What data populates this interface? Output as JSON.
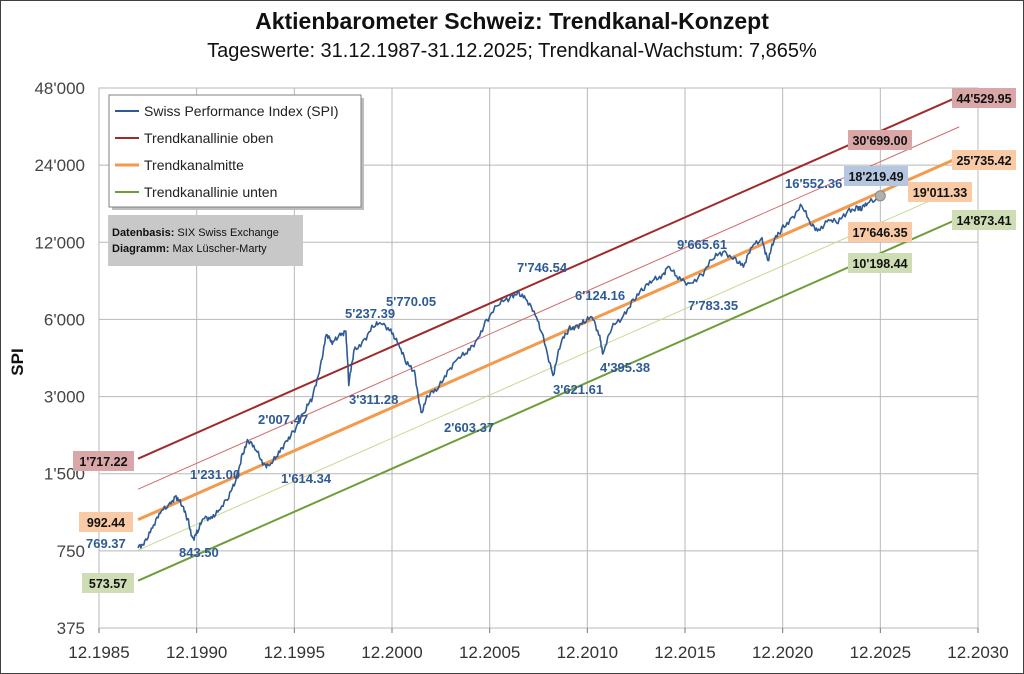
{
  "chart_data": {
    "type": "line",
    "title": "Aktienbarometer Schweiz: Trendkanal-Konzept",
    "subtitle": "Tageswerte: 31.12.1987-31.12.2025; Trendkanal-Wachstum: 7,865%",
    "ylabel": "SPI",
    "yscale": "log2",
    "ylim": [
      375,
      48000
    ],
    "yticks": [
      "375",
      "750",
      "1'500",
      "3'000",
      "6'000",
      "12'000",
      "24'000",
      "48'000"
    ],
    "ytick_values": [
      375,
      750,
      1500,
      3000,
      6000,
      12000,
      24000,
      48000
    ],
    "xlim": [
      1985.96,
      2030.96
    ],
    "xticks": [
      "12.1985",
      "12.1990",
      "12.1995",
      "12.2000",
      "12.2005",
      "12.2010",
      "12.2015",
      "12.2020",
      "12.2025",
      "12.2030"
    ],
    "xtick_values": [
      1985.96,
      1990.96,
      1995.96,
      2000.96,
      2005.96,
      2010.96,
      2015.96,
      2020.96,
      2025.96,
      2030.96
    ],
    "grid": true,
    "legend_position": "top-left",
    "legend": [
      {
        "label": "Swiss Performance Index (SPI)",
        "color": "#2e5a95"
      },
      {
        "label": "Trendkanallinie oben",
        "color": "#9e2a2b"
      },
      {
        "label": "Trendkanalmitte",
        "color": "#f39a4c"
      },
      {
        "label": "Trendkanallinie unten",
        "color": "#6f9e38"
      }
    ],
    "info_box": {
      "line1_label": "Datenbasis:",
      "line1_value": "SIX Swiss Exchange",
      "line2_label": "Diagramm:",
      "line2_value": "Max Lüscher-Marty"
    },
    "trend_lines": [
      {
        "name": "Trendkanallinie oben",
        "x": [
          1987.96,
          2030.0
        ],
        "y": [
          1717.22,
          44529.95
        ],
        "color": "#9e2a2b",
        "style": "thick"
      },
      {
        "name": "Trendkanal oberes Zwischenband",
        "x": [
          1987.96,
          2030.0
        ],
        "y": [
          1305.5,
          33854.0
        ],
        "color": "#d46a6a",
        "style": "thin"
      },
      {
        "name": "Trendkanalmitte",
        "x": [
          1987.96,
          2030.0
        ],
        "y": [
          992.44,
          25735.42
        ],
        "color": "#f39a4c",
        "style": "thick"
      },
      {
        "name": "Trendkanal unteres Zwischenband",
        "x": [
          1987.96,
          2030.0
        ],
        "y": [
          754.5,
          19565.0
        ],
        "color": "#c9d98f",
        "style": "thin"
      },
      {
        "name": "Trendkanallinie unten",
        "x": [
          1987.96,
          2030.0
        ],
        "y": [
          573.57,
          14873.41
        ],
        "color": "#6f9e38",
        "style": "thick"
      }
    ],
    "series": [
      {
        "name": "Swiss Performance Index (SPI)",
        "color": "#2e5a95",
        "points": [
          [
            1987.96,
            769.37
          ],
          [
            1988.3,
            820
          ],
          [
            1988.7,
            920
          ],
          [
            1989.1,
            1050
          ],
          [
            1989.6,
            1160
          ],
          [
            1989.9,
            1231.0
          ],
          [
            1990.2,
            1120
          ],
          [
            1990.5,
            1000
          ],
          [
            1990.75,
            843.5
          ],
          [
            1991.0,
            880
          ],
          [
            1991.3,
            1000
          ],
          [
            1991.7,
            1020
          ],
          [
            1992.1,
            1080
          ],
          [
            1992.6,
            1200
          ],
          [
            1993.0,
            1450
          ],
          [
            1993.3,
            1800
          ],
          [
            1993.6,
            2007.47
          ],
          [
            1994.0,
            1850
          ],
          [
            1994.4,
            1650
          ],
          [
            1994.7,
            1614.34
          ],
          [
            1995.1,
            1750
          ],
          [
            1995.5,
            2000
          ],
          [
            1995.9,
            2200
          ],
          [
            1996.5,
            2600
          ],
          [
            1996.9,
            3000
          ],
          [
            1997.3,
            4000
          ],
          [
            1997.6,
            5237.39
          ],
          [
            1997.9,
            4800
          ],
          [
            1998.3,
            5300
          ],
          [
            1998.6,
            5400
          ],
          [
            1998.75,
            3311.28
          ],
          [
            1999.0,
            4500
          ],
          [
            1999.5,
            5000
          ],
          [
            2000.0,
            5600
          ],
          [
            2000.4,
            5770.05
          ],
          [
            2000.9,
            5500
          ],
          [
            2001.3,
            4800
          ],
          [
            2001.7,
            4000
          ],
          [
            2002.1,
            3800
          ],
          [
            2002.45,
            2603.37
          ],
          [
            2002.8,
            3000
          ],
          [
            2003.3,
            3200
          ],
          [
            2003.8,
            3800
          ],
          [
            2004.3,
            4200
          ],
          [
            2004.8,
            4400
          ],
          [
            2005.3,
            5000
          ],
          [
            2005.8,
            6000
          ],
          [
            2006.4,
            6800
          ],
          [
            2007.0,
            7300
          ],
          [
            2007.4,
            7746.54
          ],
          [
            2007.8,
            7200
          ],
          [
            2008.3,
            6200
          ],
          [
            2008.7,
            5200
          ],
          [
            2009.2,
            3621.61
          ],
          [
            2009.6,
            4800
          ],
          [
            2010.0,
            5500
          ],
          [
            2010.4,
            5700
          ],
          [
            2010.8,
            5800
          ],
          [
            2011.2,
            6124.16
          ],
          [
            2011.6,
            5200
          ],
          [
            2011.75,
            4395.38
          ],
          [
            2012.2,
            5500
          ],
          [
            2012.8,
            6200
          ],
          [
            2013.3,
            7200
          ],
          [
            2013.8,
            7783.35
          ],
          [
            2014.3,
            8500
          ],
          [
            2014.8,
            9000
          ],
          [
            2015.1,
            9665.61
          ],
          [
            2015.6,
            8600
          ],
          [
            2016.2,
            8300
          ],
          [
            2016.8,
            9000
          ],
          [
            2017.4,
            10300
          ],
          [
            2017.9,
            11000
          ],
          [
            2018.5,
            10500
          ],
          [
            2018.95,
            9600
          ],
          [
            2019.4,
            11500
          ],
          [
            2019.9,
            12500
          ],
          [
            2020.2,
            10200
          ],
          [
            2020.5,
            12000
          ],
          [
            2020.9,
            13500
          ],
          [
            2021.4,
            15000
          ],
          [
            2021.95,
            16552.36
          ],
          [
            2022.4,
            14000
          ],
          [
            2022.8,
            13500
          ],
          [
            2023.3,
            14700
          ],
          [
            2023.8,
            14200
          ],
          [
            2024.3,
            16000
          ],
          [
            2024.8,
            16500
          ],
          [
            2024.95,
            16000
          ],
          [
            2025.3,
            17000
          ],
          [
            2025.96,
            18219.49
          ]
        ]
      }
    ],
    "data_labels": [
      {
        "text": "769.37",
        "color": "#2e5a95"
      },
      {
        "text": "843.50",
        "color": "#2e5a95"
      },
      {
        "text": "1'231.00",
        "color": "#2e5a95"
      },
      {
        "text": "1'614.34",
        "color": "#2e5a95"
      },
      {
        "text": "2'007.47",
        "color": "#2e5a95"
      },
      {
        "text": "3'311.28",
        "color": "#2e5a95"
      },
      {
        "text": "5'237.39",
        "color": "#2e5a95"
      },
      {
        "text": "5'770.05",
        "color": "#2e5a95"
      },
      {
        "text": "2'603.37",
        "color": "#2e5a95"
      },
      {
        "text": "3'621.61",
        "color": "#2e5a95"
      },
      {
        "text": "7'746.54",
        "color": "#2e5a95"
      },
      {
        "text": "6'124.16",
        "color": "#2e5a95"
      },
      {
        "text": "4'395.38",
        "color": "#2e5a95"
      },
      {
        "text": "7'783.35",
        "color": "#2e5a95"
      },
      {
        "text": "9'665.61",
        "color": "#2e5a95"
      },
      {
        "text": "16'552.36",
        "color": "#2e5a95"
      }
    ],
    "boxed_labels": [
      {
        "text": "1'717.22",
        "bg": "#d9a7a7"
      },
      {
        "text": "992.44",
        "bg": "#f8cba6"
      },
      {
        "text": "573.57",
        "bg": "#cfddb5"
      },
      {
        "text": "44'529.95",
        "bg": "#d9a7a7"
      },
      {
        "text": "30'699.00",
        "bg": "#d9a7a7"
      },
      {
        "text": "25'735.42",
        "bg": "#f8cba6"
      },
      {
        "text": "19'011.33",
        "bg": "#f8cba6"
      },
      {
        "text": "18'219.49",
        "bg": "#b5c7e0"
      },
      {
        "text": "17'646.35",
        "bg": "#f8cba6"
      },
      {
        "text": "14'873.41",
        "bg": "#cfddb5"
      },
      {
        "text": "10'198.44",
        "bg": "#cfddb5"
      }
    ]
  }
}
